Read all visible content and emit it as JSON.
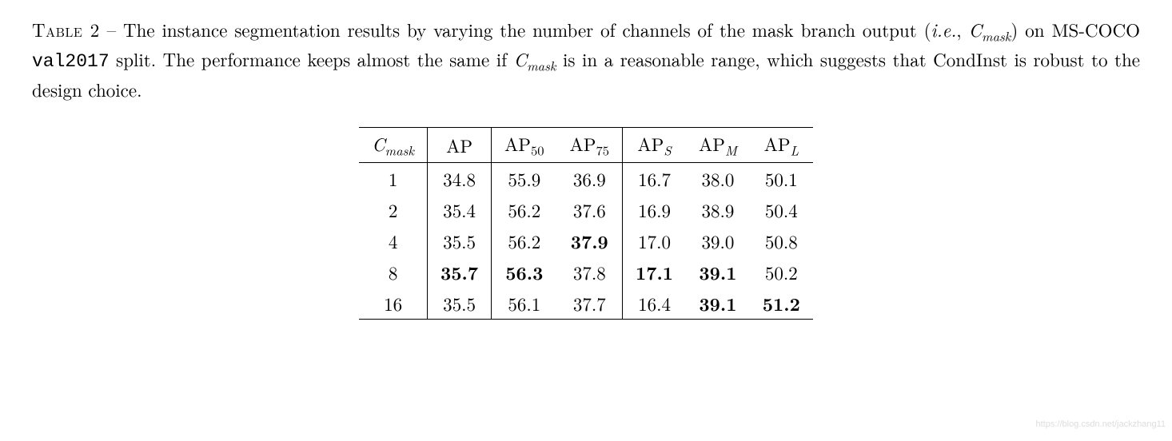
{
  "caption": {
    "label": "Table 2",
    "sep": " – ",
    "text_a": "The instance segmentation results by varying the number of channels of the mask branch output (",
    "ie": "i.e.",
    "comma": ", ",
    "cmask_var": "C",
    "cmask_sub": "mask",
    "text_b": ") on MS-COCO ",
    "split": "val2017",
    "text_c": " split. The performance keeps almost the same if ",
    "text_d": " is in a reasonable range, which suggests that CondInst is robust to the design choice."
  },
  "table": {
    "headers": {
      "c0_var": "C",
      "c0_sub": "mask",
      "c1": "AP",
      "c2_base": "AP",
      "c2_sub": "50",
      "c3_base": "AP",
      "c3_sub": "75",
      "c4_base": "AP",
      "c4_sub": "S",
      "c5_base": "AP",
      "c5_sub": "M",
      "c6_base": "AP",
      "c6_sub": "L"
    },
    "rows": [
      {
        "cmask": "1",
        "ap": "34.8",
        "ap50": "55.9",
        "ap75": "36.9",
        "aps": "16.7",
        "apm": "38.0",
        "apl": "50.1",
        "bold": []
      },
      {
        "cmask": "2",
        "ap": "35.4",
        "ap50": "56.2",
        "ap75": "37.6",
        "aps": "16.9",
        "apm": "38.9",
        "apl": "50.4",
        "bold": []
      },
      {
        "cmask": "4",
        "ap": "35.5",
        "ap50": "56.2",
        "ap75": "37.9",
        "aps": "17.0",
        "apm": "39.0",
        "apl": "50.8",
        "bold": [
          "ap75"
        ]
      },
      {
        "cmask": "8",
        "ap": "35.7",
        "ap50": "56.3",
        "ap75": "37.8",
        "aps": "17.1",
        "apm": "39.1",
        "apl": "50.2",
        "bold": [
          "ap",
          "ap50",
          "aps",
          "apm"
        ]
      },
      {
        "cmask": "16",
        "ap": "35.5",
        "ap50": "56.1",
        "ap75": "37.7",
        "aps": "16.4",
        "apm": "39.1",
        "apl": "51.2",
        "bold": [
          "apm",
          "apl"
        ]
      }
    ]
  },
  "watermark": "https://blog.csdn.net/jackzhang11"
}
